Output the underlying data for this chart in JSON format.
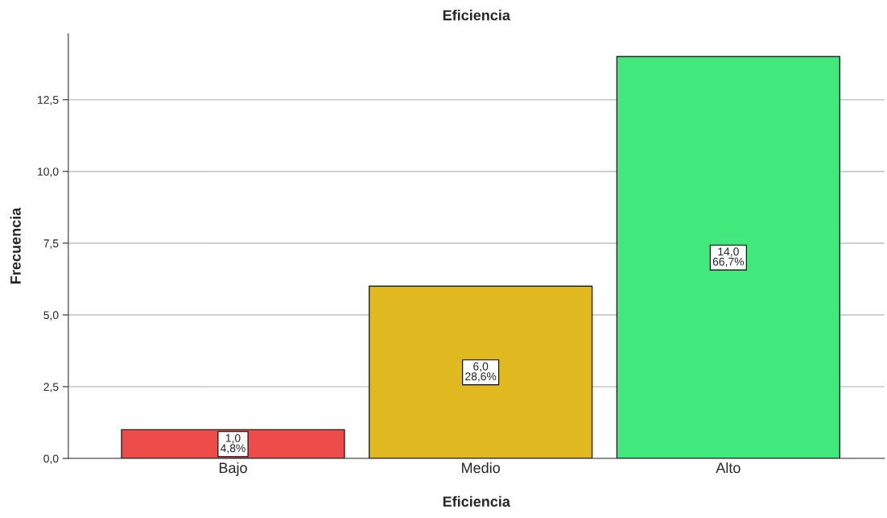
{
  "chart_data": {
    "type": "bar",
    "title": "Eficiencia",
    "xlabel": "Eficiencia",
    "ylabel": "Frecuencia",
    "categories": [
      "Bajo",
      "Medio",
      "Alto"
    ],
    "values": [
      1.0,
      6.0,
      14.0
    ],
    "colors": [
      "#ee4b4b",
      "#dfb91f",
      "#41e97c"
    ],
    "value_labels": [
      "1,0\n4,8%",
      "6,0\n28,6%",
      "14,0\n66,7%"
    ],
    "ylim": [
      0,
      14.8
    ],
    "yticks": [
      {
        "value": 0,
        "label": "0,0"
      },
      {
        "value": 2.5,
        "label": "2,5"
      },
      {
        "value": 5,
        "label": "5,0"
      },
      {
        "value": 7.5,
        "label": "7,5"
      },
      {
        "value": 10,
        "label": "10,0"
      },
      {
        "value": 12.5,
        "label": "12,5"
      }
    ],
    "grid": "y",
    "legend": false
  }
}
